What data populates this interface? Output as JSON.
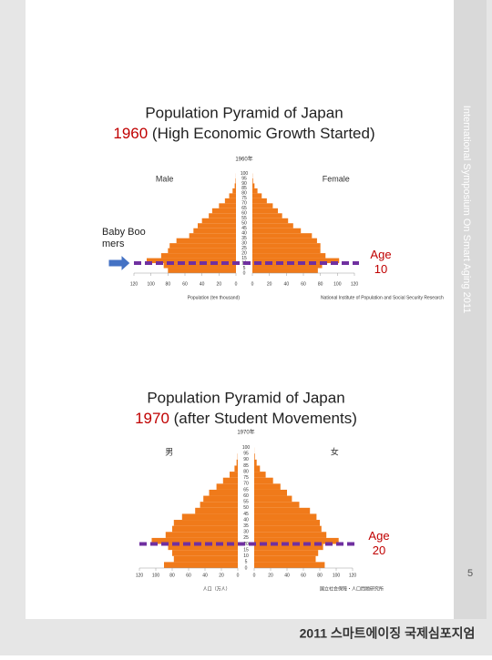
{
  "side_title": "International Symposium On Smart Aging 2011",
  "page_number": "5",
  "footer": "2011 스마트에이징 국제심포지엄",
  "chart_data": [
    {
      "type": "pyramid",
      "title": "Population Pyramid of Japan",
      "year_label": "1960",
      "subtitle": "(High Economic Growth Started)",
      "inner_title": "1960年",
      "xlabel": "Population (ten thousand)",
      "source": "National Institute of Population and Social Security Research",
      "annotation": "Baby Boomers",
      "marker": {
        "age": 10,
        "label": "Age 10",
        "color": "#7030a0"
      },
      "categories": [
        0,
        5,
        10,
        15,
        20,
        25,
        30,
        35,
        40,
        45,
        50,
        55,
        60,
        65,
        70,
        75,
        80,
        85,
        90,
        95,
        100
      ],
      "series": [
        {
          "name": "Male",
          "color": "#f07a1a",
          "values": [
            80,
            85,
            105,
            88,
            80,
            78,
            70,
            55,
            50,
            45,
            40,
            32,
            28,
            20,
            13,
            8,
            4,
            1.5,
            0.5,
            0.1,
            0
          ]
        },
        {
          "name": "Female",
          "color": "#f07a1a",
          "values": [
            77,
            82,
            102,
            86,
            80,
            80,
            76,
            70,
            57,
            48,
            42,
            35,
            30,
            24,
            17,
            11,
            6,
            2.5,
            0.8,
            0.2,
            0
          ]
        }
      ],
      "xlim": [
        0,
        120
      ],
      "ylim": [
        0,
        105
      ],
      "male_xticks": [
        120,
        100,
        80,
        60,
        40,
        20,
        0
      ],
      "female_xticks": [
        0,
        20,
        40,
        60,
        80,
        100,
        120
      ]
    },
    {
      "type": "pyramid",
      "title": "Population Pyramid of Japan",
      "year_label": "1970",
      "subtitle": "(after Student Movements)",
      "inner_title": "1970年",
      "xlabel": "人口（万人）",
      "source": "国立社会保障・人口問題研究所",
      "marker": {
        "age": 20,
        "label": "Age 20",
        "color": "#7030a0"
      },
      "categories": [
        0,
        5,
        10,
        15,
        20,
        25,
        30,
        35,
        40,
        45,
        50,
        55,
        60,
        65,
        70,
        75,
        80,
        85,
        90,
        95,
        100
      ],
      "series": [
        {
          "name": "男",
          "color": "#f07a1a",
          "values": [
            90,
            78,
            80,
            85,
            105,
            88,
            80,
            78,
            68,
            52,
            46,
            42,
            35,
            26,
            18,
            10,
            4,
            1.5,
            0.3,
            0,
            0
          ]
        },
        {
          "name": "女",
          "color": "#f07a1a",
          "values": [
            86,
            75,
            78,
            84,
            103,
            88,
            82,
            80,
            76,
            68,
            55,
            46,
            40,
            32,
            23,
            14,
            7,
            3,
            0.8,
            0.1,
            0
          ]
        }
      ],
      "xlim": [
        0,
        120
      ],
      "ylim": [
        0,
        105
      ],
      "male_xticks": [
        120,
        100,
        80,
        60,
        40,
        20,
        0
      ],
      "female_xticks": [
        0,
        20,
        40,
        60,
        80,
        100,
        120
      ]
    }
  ]
}
